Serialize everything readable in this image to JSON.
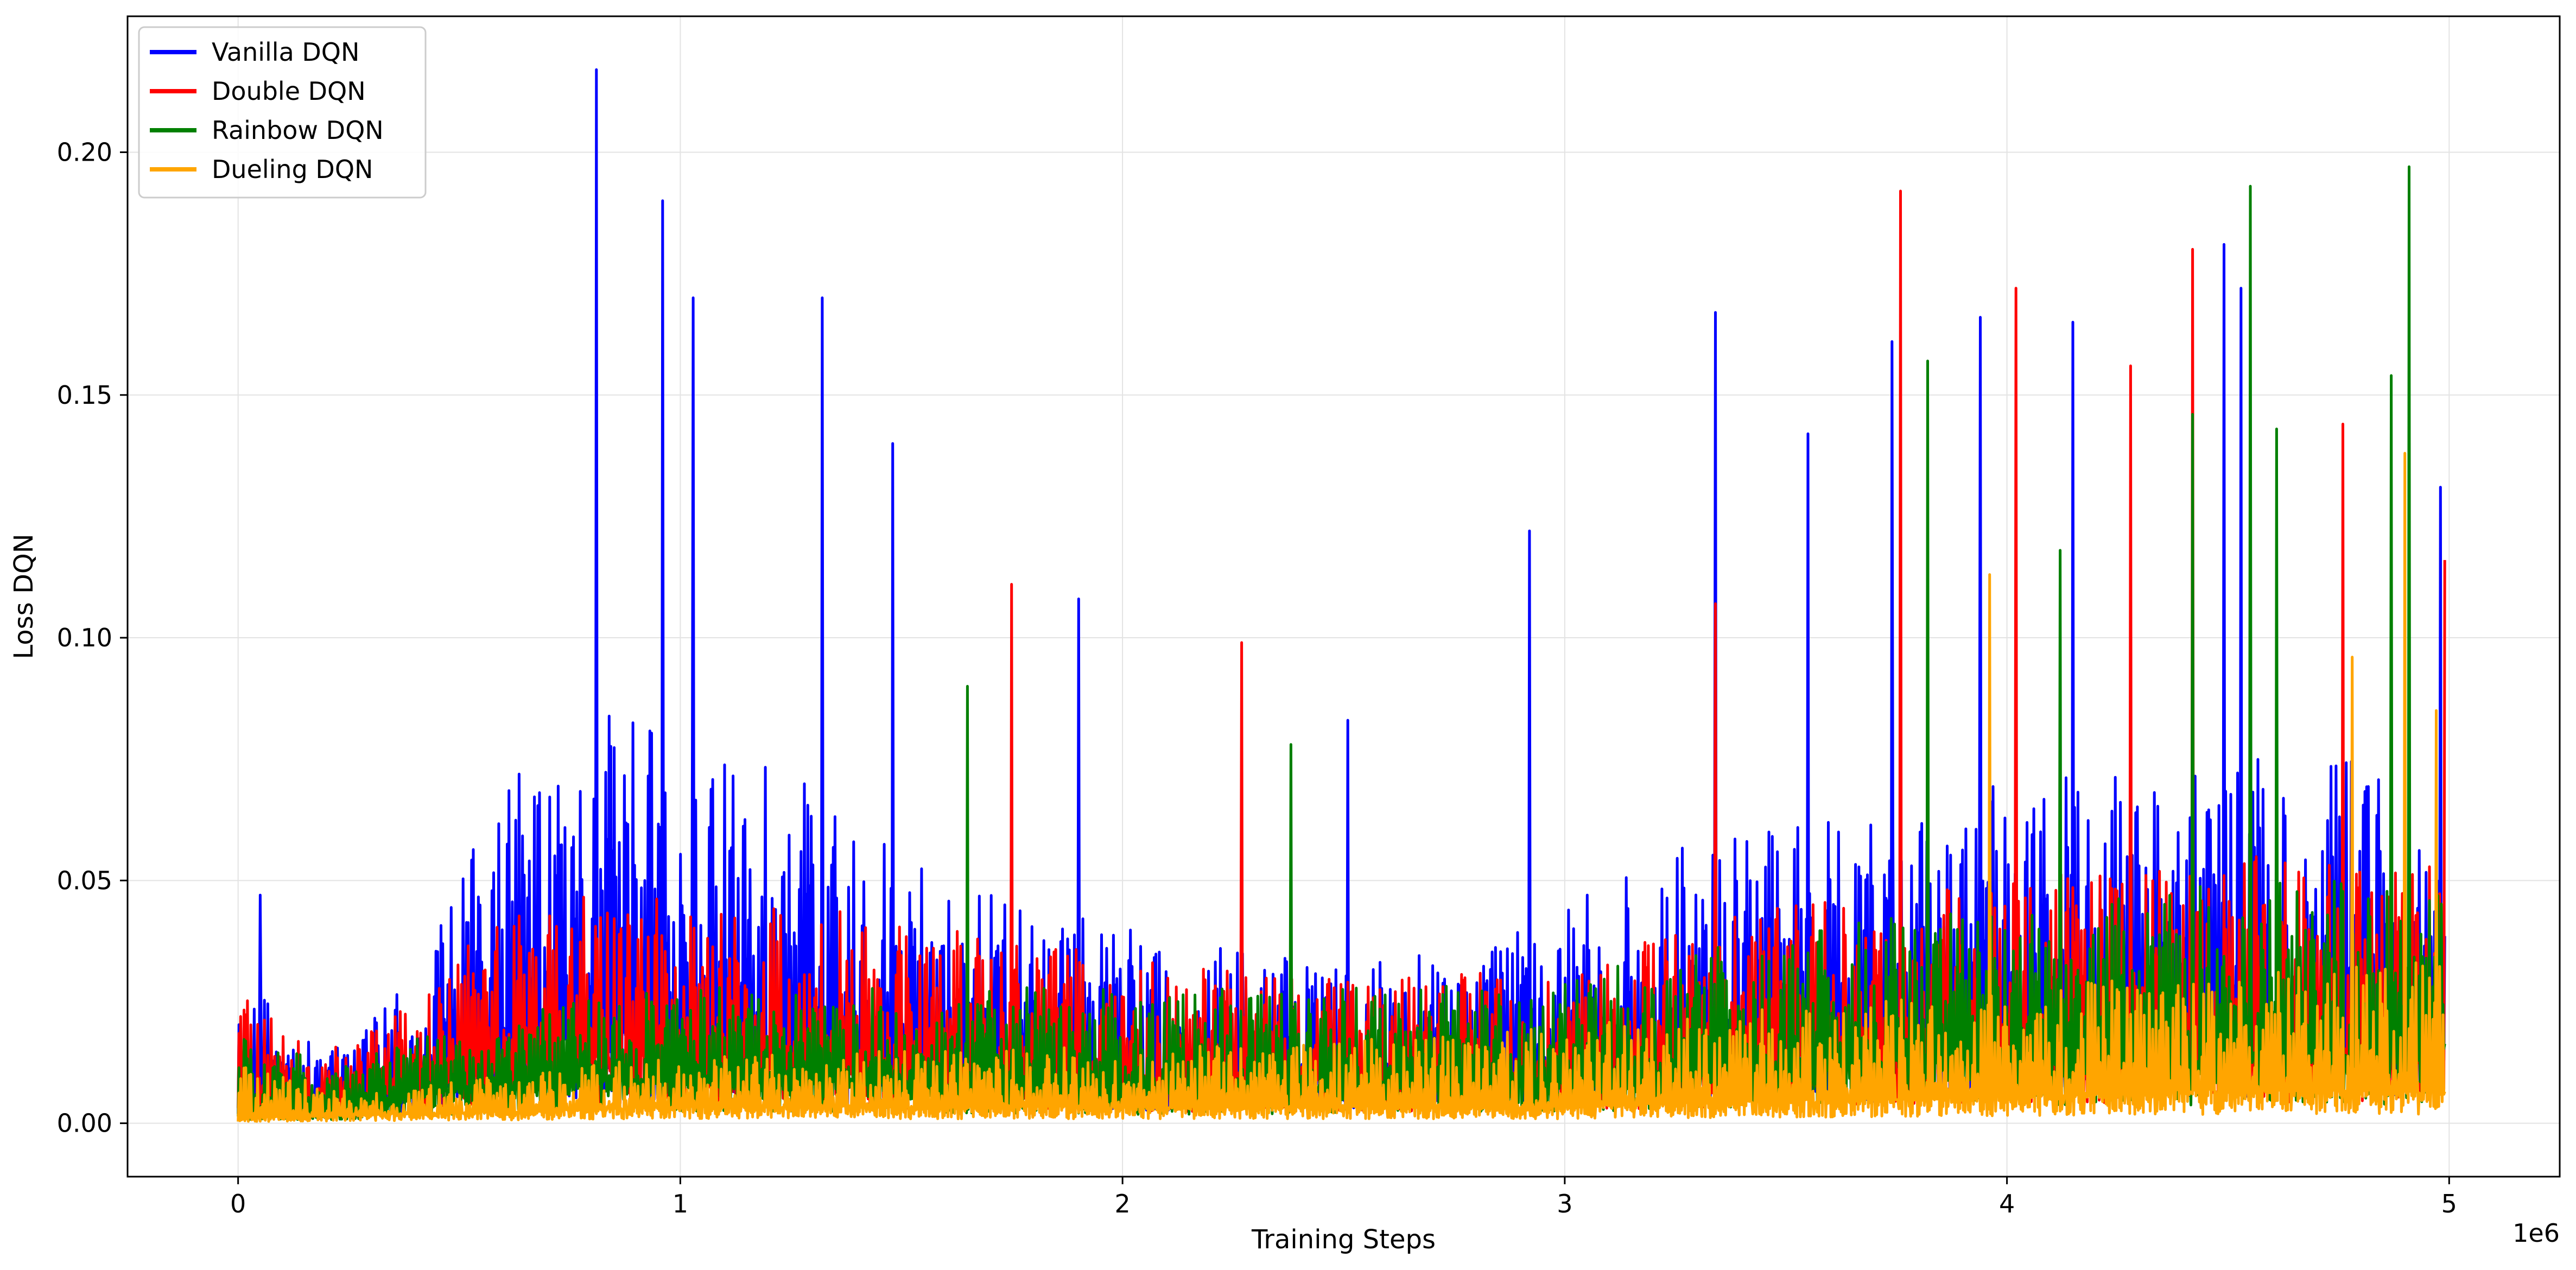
{
  "chart_data": {
    "type": "line",
    "title": "",
    "xlabel": "Training Steps",
    "ylabel": "Loss DQN",
    "x_offset_label": "1e6",
    "xlim": [
      -0.25,
      5.25
    ],
    "ylim": [
      -0.011,
      0.228
    ],
    "x_ticks": [
      0,
      1,
      2,
      3,
      4,
      5
    ],
    "x_tick_labels": [
      "0",
      "1",
      "2",
      "3",
      "4",
      "5"
    ],
    "y_ticks": [
      0.0,
      0.05,
      0.1,
      0.15,
      0.2
    ],
    "y_tick_labels": [
      "0.00",
      "0.05",
      "0.10",
      "0.15",
      "0.20"
    ],
    "grid": true,
    "legend_position": "top-left",
    "x_range": [
      0,
      4.99
    ],
    "series": [
      {
        "name": "Vanilla DQN",
        "color": "#0000ff",
        "baseline": [
          [
            0,
            0.004
          ],
          [
            0.2,
            0.003
          ],
          [
            0.5,
            0.012
          ],
          [
            0.8,
            0.016
          ],
          [
            1.0,
            0.016
          ],
          [
            1.3,
            0.014
          ],
          [
            1.6,
            0.012
          ],
          [
            2.0,
            0.009
          ],
          [
            2.5,
            0.008
          ],
          [
            3.0,
            0.01
          ],
          [
            3.5,
            0.014
          ],
          [
            4.0,
            0.016
          ],
          [
            4.5,
            0.018
          ],
          [
            4.99,
            0.02
          ]
        ],
        "envelope": [
          [
            0,
            0.03
          ],
          [
            0.2,
            0.015
          ],
          [
            0.4,
            0.03
          ],
          [
            0.6,
            0.07
          ],
          [
            0.8,
            0.085
          ],
          [
            1.0,
            0.08
          ],
          [
            1.3,
            0.07
          ],
          [
            1.5,
            0.055
          ],
          [
            1.8,
            0.045
          ],
          [
            2.0,
            0.04
          ],
          [
            2.5,
            0.035
          ],
          [
            2.8,
            0.035
          ],
          [
            3.0,
            0.045
          ],
          [
            3.3,
            0.06
          ],
          [
            3.6,
            0.065
          ],
          [
            4.0,
            0.07
          ],
          [
            4.5,
            0.075
          ],
          [
            4.99,
            0.075
          ]
        ],
        "peaks": [
          [
            0.05,
            0.047
          ],
          [
            0.81,
            0.217
          ],
          [
            0.96,
            0.19
          ],
          [
            1.03,
            0.17
          ],
          [
            1.32,
            0.17
          ],
          [
            1.48,
            0.14
          ],
          [
            1.9,
            0.108
          ],
          [
            2.51,
            0.083
          ],
          [
            2.92,
            0.122
          ],
          [
            3.34,
            0.167
          ],
          [
            3.55,
            0.142
          ],
          [
            3.74,
            0.161
          ],
          [
            3.94,
            0.166
          ],
          [
            4.15,
            0.165
          ],
          [
            4.49,
            0.181
          ],
          [
            4.53,
            0.172
          ],
          [
            4.98,
            0.131
          ]
        ]
      },
      {
        "name": "Double DQN",
        "color": "#ff0000",
        "baseline": [
          [
            0,
            0.003
          ],
          [
            0.2,
            0.003
          ],
          [
            0.5,
            0.01
          ],
          [
            0.8,
            0.012
          ],
          [
            1.0,
            0.012
          ],
          [
            1.5,
            0.01
          ],
          [
            2.0,
            0.008
          ],
          [
            2.5,
            0.008
          ],
          [
            3.0,
            0.009
          ],
          [
            3.5,
            0.012
          ],
          [
            4.0,
            0.014
          ],
          [
            4.5,
            0.014
          ],
          [
            4.99,
            0.015
          ]
        ],
        "envelope": [
          [
            0,
            0.03
          ],
          [
            0.2,
            0.015
          ],
          [
            0.4,
            0.025
          ],
          [
            0.6,
            0.045
          ],
          [
            0.8,
            0.05
          ],
          [
            1.0,
            0.045
          ],
          [
            1.3,
            0.045
          ],
          [
            1.6,
            0.04
          ],
          [
            2.0,
            0.035
          ],
          [
            2.5,
            0.03
          ],
          [
            3.0,
            0.035
          ],
          [
            3.5,
            0.045
          ],
          [
            4.0,
            0.05
          ],
          [
            4.5,
            0.055
          ],
          [
            4.99,
            0.055
          ]
        ],
        "peaks": [
          [
            1.75,
            0.111
          ],
          [
            2.27,
            0.099
          ],
          [
            3.34,
            0.107
          ],
          [
            3.76,
            0.192
          ],
          [
            4.02,
            0.172
          ],
          [
            4.28,
            0.156
          ],
          [
            4.42,
            0.18
          ],
          [
            4.76,
            0.144
          ],
          [
            4.99,
            0.116
          ]
        ]
      },
      {
        "name": "Rainbow DQN",
        "color": "#008000",
        "baseline": [
          [
            0,
            0.002
          ],
          [
            0.2,
            0.002
          ],
          [
            0.5,
            0.006
          ],
          [
            0.8,
            0.008
          ],
          [
            1.0,
            0.008
          ],
          [
            1.5,
            0.007
          ],
          [
            2.0,
            0.006
          ],
          [
            2.5,
            0.006
          ],
          [
            3.0,
            0.007
          ],
          [
            3.5,
            0.01
          ],
          [
            4.0,
            0.012
          ],
          [
            4.5,
            0.012
          ],
          [
            4.99,
            0.013
          ]
        ],
        "envelope": [
          [
            0,
            0.02
          ],
          [
            0.2,
            0.012
          ],
          [
            0.5,
            0.02
          ],
          [
            0.8,
            0.026
          ],
          [
            1.0,
            0.028
          ],
          [
            1.5,
            0.028
          ],
          [
            2.0,
            0.028
          ],
          [
            2.5,
            0.028
          ],
          [
            3.0,
            0.03
          ],
          [
            3.5,
            0.04
          ],
          [
            4.0,
            0.045
          ],
          [
            4.5,
            0.05
          ],
          [
            4.99,
            0.05
          ]
        ],
        "peaks": [
          [
            1.65,
            0.09
          ],
          [
            2.38,
            0.078
          ],
          [
            3.82,
            0.157
          ],
          [
            4.12,
            0.118
          ],
          [
            4.42,
            0.146
          ],
          [
            4.55,
            0.193
          ],
          [
            4.61,
            0.143
          ],
          [
            4.87,
            0.154
          ],
          [
            4.91,
            0.197
          ]
        ]
      },
      {
        "name": "Dueling DQN",
        "color": "#ffa500",
        "baseline": [
          [
            0,
            0.001
          ],
          [
            0.5,
            0.002
          ],
          [
            1.0,
            0.003
          ],
          [
            1.5,
            0.003
          ],
          [
            2.0,
            0.003
          ],
          [
            2.5,
            0.003
          ],
          [
            3.0,
            0.003
          ],
          [
            3.5,
            0.004
          ],
          [
            4.0,
            0.005
          ],
          [
            4.5,
            0.006
          ],
          [
            4.99,
            0.006
          ]
        ],
        "envelope": [
          [
            0,
            0.012
          ],
          [
            0.3,
            0.006
          ],
          [
            0.6,
            0.01
          ],
          [
            1.0,
            0.014
          ],
          [
            1.5,
            0.015
          ],
          [
            2.0,
            0.016
          ],
          [
            2.5,
            0.017
          ],
          [
            3.0,
            0.02
          ],
          [
            3.5,
            0.024
          ],
          [
            4.0,
            0.028
          ],
          [
            4.5,
            0.032
          ],
          [
            4.99,
            0.035
          ]
        ],
        "peaks": [
          [
            3.96,
            0.113
          ],
          [
            4.78,
            0.096
          ],
          [
            4.9,
            0.138
          ],
          [
            4.97,
            0.085
          ]
        ]
      }
    ]
  }
}
